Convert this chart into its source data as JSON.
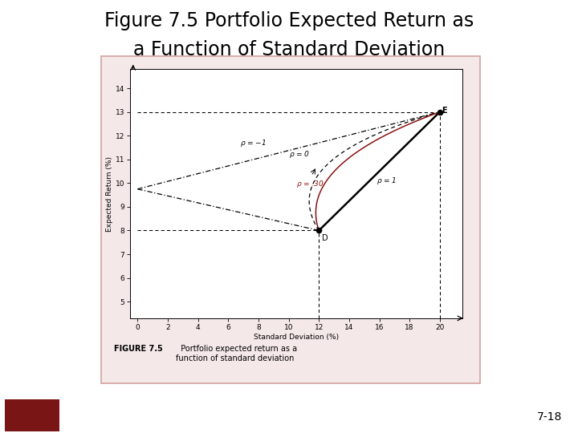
{
  "title_line1": "Figure 7.5 Portfolio Expected Return as",
  "title_line2": "a Function of Standard Deviation",
  "point_D": [
    12,
    8
  ],
  "point_E": [
    20,
    13
  ],
  "xlabel": "Standard Deviation (%)",
  "ylabel": "Expected Return (%)",
  "xlim": [
    -0.5,
    21.5
  ],
  "ylim": [
    4.3,
    14.8
  ],
  "xticks": [
    0,
    2,
    4,
    6,
    8,
    10,
    12,
    14,
    16,
    18,
    20
  ],
  "yticks": [
    5,
    6,
    7,
    8,
    9,
    10,
    11,
    12,
    13,
    14
  ],
  "rho_neg1_vertex": [
    0,
    9.75
  ],
  "cp_rho0": [
    9.0,
    11.0
  ],
  "cp_rho30": [
    10.5,
    10.8
  ],
  "caption_bold": "FIGURE 7.5",
  "caption_rest": "  Portfolio expected return as a\nfunction of standard deviation",
  "page_num": "7-18",
  "color_dark_red": "#8B1010",
  "caption_bg": "#f0c0c0",
  "gray_bar_bg": "#c8c8c8",
  "bottom_red": "#7a1515",
  "outer_frame_bg": "#f5e8e8",
  "chart_frame_border": "#d4a0a0"
}
